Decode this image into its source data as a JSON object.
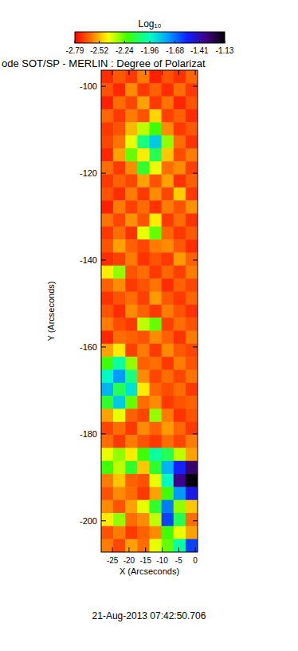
{
  "chart_data": {
    "type": "heatmap",
    "title": "ode SOT/SP - MERLIN : Degree of Polarizat",
    "x_label": "X (Arcseconds)",
    "y_label": "Y (Arcseconds)",
    "annotation": "21-Aug-2013 07:42:50.706",
    "xlim": [
      -28.4,
      0.7
    ],
    "ylim": [
      -207.2,
      -96.3
    ],
    "xticks": [
      -25,
      -20,
      -15,
      -10,
      -5,
      0
    ],
    "yticks": [
      -100,
      -120,
      -140,
      -160,
      -180,
      -200
    ],
    "colorbar": {
      "label": "Log₁₀",
      "range": [
        -2.79,
        -1.13
      ],
      "ticks": [
        -2.79,
        -2.52,
        -2.24,
        -1.96,
        -1.68,
        -1.41,
        -1.13
      ]
    },
    "cells": [
      [
        -2.72,
        -2.65,
        -2.7,
        -2.6,
        -2.74,
        -2.66,
        -2.71,
        -2.63
      ],
      [
        -2.66,
        -2.73,
        -2.58,
        -2.7,
        -2.64,
        -2.72,
        -2.62,
        -2.7
      ],
      [
        -2.74,
        -2.62,
        -2.68,
        -2.55,
        -2.7,
        -2.61,
        -2.73,
        -2.66
      ],
      [
        -2.63,
        -2.7,
        -2.6,
        -2.66,
        -2.48,
        -2.69,
        -2.64,
        -2.72
      ],
      [
        -2.7,
        -2.66,
        -2.52,
        -2.35,
        -2.2,
        -2.58,
        -2.7,
        -2.65
      ],
      [
        -2.68,
        -2.61,
        -2.4,
        -2.05,
        -1.85,
        -2.3,
        -2.62,
        -2.71
      ],
      [
        -2.73,
        -2.55,
        -2.25,
        -2.45,
        -2.1,
        -2.5,
        -2.67,
        -2.6
      ],
      [
        -2.62,
        -2.7,
        -2.58,
        -2.15,
        -2.4,
        -2.62,
        -2.58,
        -2.69
      ],
      [
        -2.7,
        -2.64,
        -2.68,
        -2.55,
        -2.66,
        -2.55,
        -2.71,
        -2.64
      ],
      [
        -2.66,
        -2.72,
        -2.6,
        -2.7,
        -2.58,
        -2.68,
        -2.49,
        -2.7
      ],
      [
        -2.74,
        -2.6,
        -2.69,
        -2.62,
        -2.71,
        -2.6,
        -2.66,
        -2.57
      ],
      [
        -2.61,
        -2.68,
        -2.57,
        -2.66,
        -2.45,
        -2.7,
        -2.62,
        -2.71
      ],
      [
        -2.7,
        -2.62,
        -2.71,
        -2.4,
        -2.25,
        -2.63,
        -2.7,
        -2.65
      ],
      [
        -2.66,
        -2.55,
        -2.64,
        -2.68,
        -2.6,
        -2.58,
        -2.65,
        -2.72
      ],
      [
        -2.72,
        -2.69,
        -2.6,
        -2.71,
        -2.66,
        -2.7,
        -2.56,
        -2.64
      ],
      [
        -2.45,
        -2.3,
        -2.66,
        -2.62,
        -2.7,
        -2.63,
        -2.69,
        -2.6
      ],
      [
        -2.64,
        -2.58,
        -2.7,
        -2.66,
        -2.61,
        -2.72,
        -2.64,
        -2.68
      ],
      [
        -2.71,
        -2.66,
        -2.62,
        -2.69,
        -2.56,
        -2.65,
        -2.7,
        -2.63
      ],
      [
        -2.66,
        -2.72,
        -2.58,
        -2.64,
        -2.7,
        -2.6,
        -2.66,
        -2.71
      ],
      [
        -2.6,
        -2.67,
        -2.7,
        -2.35,
        -2.25,
        -2.69,
        -2.62,
        -2.66
      ],
      [
        -2.73,
        -2.62,
        -2.64,
        -2.66,
        -2.58,
        -2.64,
        -2.71,
        -2.6
      ],
      [
        -2.55,
        -2.45,
        -2.69,
        -2.6,
        -2.7,
        -2.58,
        -2.65,
        -2.68
      ],
      [
        -2.2,
        -2.0,
        -2.3,
        -2.64,
        -2.62,
        -2.7,
        -2.6,
        -2.66
      ],
      [
        -1.95,
        -1.75,
        -2.05,
        -2.58,
        -2.68,
        -2.62,
        -2.68,
        -2.61
      ],
      [
        -1.8,
        -2.1,
        -1.9,
        -2.45,
        -2.63,
        -2.67,
        -2.62,
        -2.7
      ],
      [
        -2.15,
        -1.85,
        -2.25,
        -2.62,
        -2.58,
        -2.7,
        -2.66,
        -2.64
      ],
      [
        -2.55,
        -2.4,
        -2.64,
        -2.68,
        -2.3,
        -2.6,
        -2.71,
        -2.66
      ],
      [
        -2.68,
        -2.62,
        -2.7,
        -2.58,
        -2.64,
        -2.56,
        -2.63,
        -2.7
      ],
      [
        -2.62,
        -2.7,
        -2.6,
        -2.66,
        -2.7,
        -2.62,
        -2.68,
        -2.6
      ],
      [
        -2.4,
        -2.3,
        -2.45,
        -2.2,
        -2.0,
        -2.1,
        -2.35,
        -2.55
      ],
      [
        -2.2,
        -2.35,
        -2.15,
        -2.5,
        -2.15,
        -1.8,
        -1.55,
        -1.3
      ],
      [
        -2.6,
        -2.5,
        -2.64,
        -2.66,
        -2.4,
        -1.95,
        -1.35,
        -1.15
      ],
      [
        -2.66,
        -2.58,
        -2.62,
        -2.7,
        -2.55,
        -2.2,
        -1.75,
        -1.5
      ],
      [
        -2.58,
        -2.66,
        -2.55,
        -2.4,
        -2.15,
        -1.7,
        -2.3,
        -2.5
      ],
      [
        -2.45,
        -2.3,
        -2.62,
        -2.58,
        -2.35,
        -1.6,
        -2.1,
        -2.62
      ],
      [
        -2.66,
        -2.6,
        -2.7,
        -2.64,
        -2.58,
        -2.2,
        -2.4,
        -2.55
      ],
      [
        -2.6,
        -2.68,
        -2.55,
        -2.62,
        -2.4,
        -2.25,
        -2.0,
        -1.6
      ]
    ]
  }
}
